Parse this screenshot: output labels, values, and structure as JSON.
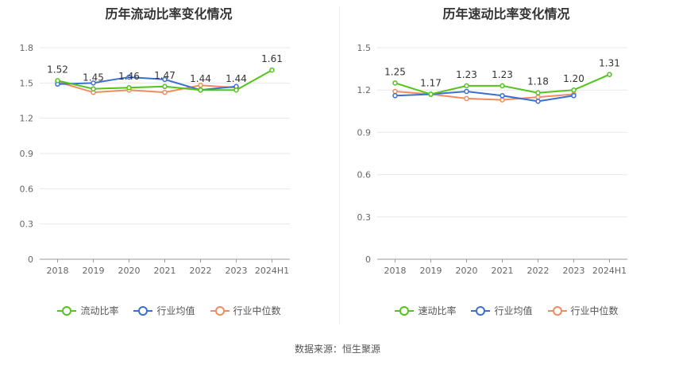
{
  "source": "数据来源：恒生聚源",
  "charts": [
    {
      "id": "current",
      "chart_data": {
        "type": "line",
        "title": "历年流动比率变化情况",
        "categories": [
          "2018",
          "2019",
          "2020",
          "2021",
          "2022",
          "2023",
          "2024H1"
        ],
        "ylim": [
          0,
          1.8
        ],
        "yticks": [
          "0",
          "0.3",
          "0.6",
          "0.9",
          "1.2",
          "1.5",
          "1.8"
        ],
        "grid": true,
        "legend_position": "bottom",
        "series": [
          {
            "name": "流动比率",
            "color": "#52c41a",
            "values": [
              1.52,
              1.45,
              1.46,
              1.47,
              1.44,
              1.44,
              1.61
            ],
            "labels": [
              "1.52",
              "1.45",
              "1.46",
              "1.47",
              "1.44",
              "1.44",
              "1.61"
            ]
          },
          {
            "name": "行业均值",
            "color": "#3b6fd4",
            "values": [
              1.49,
              1.5,
              1.55,
              1.53,
              1.44,
              1.47,
              null
            ]
          },
          {
            "name": "行业中位数",
            "color": "#f08c5e",
            "values": [
              1.51,
              1.42,
              1.44,
              1.42,
              1.48,
              1.46,
              null
            ]
          }
        ]
      }
    },
    {
      "id": "quick",
      "chart_data": {
        "type": "line",
        "title": "历年速动比率变化情况",
        "categories": [
          "2018",
          "2019",
          "2020",
          "2021",
          "2022",
          "2023",
          "2024H1"
        ],
        "ylim": [
          0,
          1.5
        ],
        "yticks": [
          "0",
          "0.3",
          "0.6",
          "0.9",
          "1.2",
          "1.5"
        ],
        "grid": true,
        "legend_position": "bottom",
        "series": [
          {
            "name": "速动比率",
            "color": "#52c41a",
            "values": [
              1.25,
              1.17,
              1.23,
              1.23,
              1.18,
              1.2,
              1.31
            ],
            "labels": [
              "1.25",
              "1.17",
              "1.23",
              "1.23",
              "1.18",
              "1.20",
              "1.31"
            ]
          },
          {
            "name": "行业均值",
            "color": "#3b6fd4",
            "values": [
              1.16,
              1.17,
              1.19,
              1.16,
              1.12,
              1.16,
              null
            ]
          },
          {
            "name": "行业中位数",
            "color": "#f08c5e",
            "values": [
              1.19,
              1.17,
              1.14,
              1.13,
              1.15,
              1.17,
              null
            ]
          }
        ]
      }
    }
  ]
}
